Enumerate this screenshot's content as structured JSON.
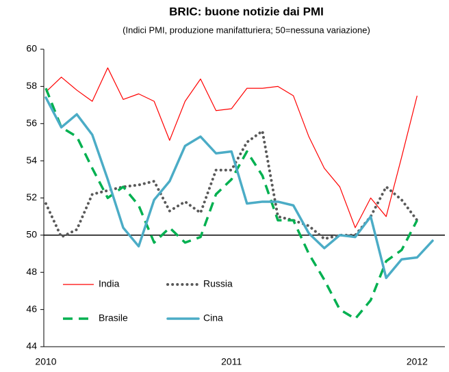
{
  "chart_data": {
    "type": "line",
    "title": "BRIC: buone notizie dai PMI",
    "subtitle": "(Indici PMI, produzione manifatturiera; 50=nessuna variazione)",
    "categories": [
      "2010",
      null,
      null,
      null,
      null,
      null,
      null,
      null,
      null,
      null,
      null,
      null,
      "2011",
      null,
      null,
      null,
      null,
      null,
      null,
      null,
      null,
      null,
      null,
      null,
      "2012",
      null
    ],
    "ylim": [
      44,
      60
    ],
    "yticks": [
      44,
      46,
      48,
      50,
      52,
      54,
      56,
      58,
      60
    ],
    "reference_line": 50,
    "legend": "bottom-left",
    "series": [
      {
        "name": "India",
        "color": "#ff0000",
        "style": "solid",
        "values": [
          57.7,
          58.5,
          57.8,
          57.2,
          59.0,
          57.3,
          57.6,
          57.2,
          55.1,
          57.2,
          58.4,
          56.7,
          56.8,
          57.9,
          57.9,
          58.0,
          57.5,
          55.3,
          53.6,
          52.6,
          50.4,
          52.0,
          51.0,
          54.2,
          57.5,
          null
        ]
      },
      {
        "name": "Russia",
        "color": "#595959",
        "style": "dotted",
        "values": [
          51.7,
          49.9,
          50.3,
          52.2,
          52.4,
          52.6,
          52.7,
          52.9,
          51.3,
          51.8,
          51.2,
          53.5,
          53.5,
          55.0,
          55.6,
          51.0,
          50.8,
          50.5,
          49.8,
          50.0,
          50.0,
          51.0,
          52.6,
          51.9,
          50.8,
          null
        ]
      },
      {
        "name": "Brasile",
        "color": "#00b050",
        "style": "dashed",
        "values": [
          57.9,
          55.8,
          55.3,
          53.6,
          52.0,
          52.6,
          51.6,
          49.6,
          50.4,
          49.6,
          49.9,
          52.2,
          53.0,
          54.5,
          53.2,
          50.8,
          50.8,
          49.0,
          47.6,
          46.0,
          45.5,
          46.5,
          48.6,
          49.2,
          50.8,
          null
        ]
      },
      {
        "name": "Cina",
        "color": "#4bacc6",
        "style": "solid-thick",
        "values": [
          57.4,
          55.8,
          56.5,
          55.4,
          53.0,
          50.4,
          49.4,
          51.9,
          52.9,
          54.8,
          55.3,
          54.4,
          54.5,
          51.7,
          51.8,
          51.8,
          51.6,
          50.1,
          49.3,
          50.0,
          49.9,
          51.0,
          47.7,
          48.7,
          48.8,
          49.7
        ]
      }
    ]
  }
}
